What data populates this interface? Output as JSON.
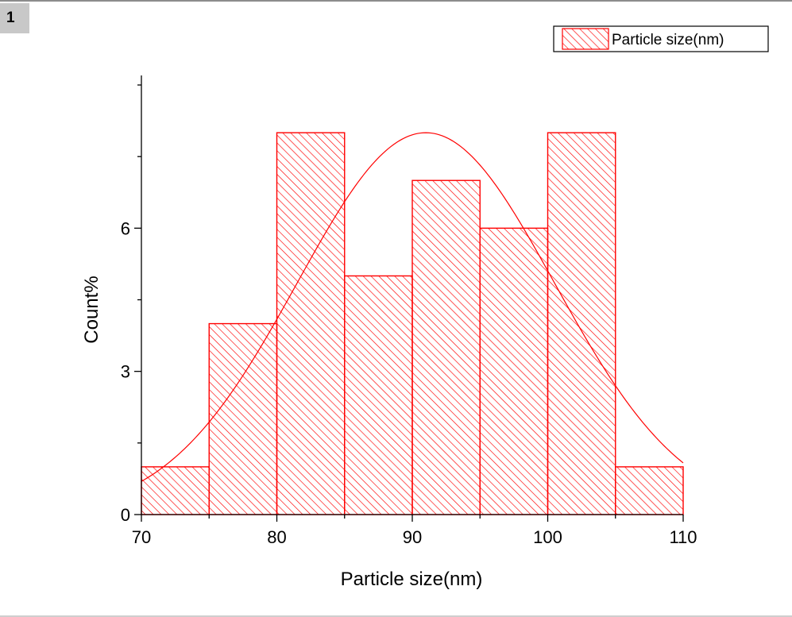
{
  "page": {
    "badge": "1"
  },
  "colors": {
    "bar_stroke": "#ff0000",
    "hatch": "#ff0000",
    "fit_line": "#ff0000",
    "axis": "#000000"
  },
  "chart_data": {
    "type": "bar",
    "bins": [
      {
        "start": 70,
        "end": 75,
        "count": 1
      },
      {
        "start": 75,
        "end": 80,
        "count": 4
      },
      {
        "start": 80,
        "end": 85,
        "count": 8
      },
      {
        "start": 85,
        "end": 90,
        "count": 5
      },
      {
        "start": 90,
        "end": 95,
        "count": 7
      },
      {
        "start": 95,
        "end": 100,
        "count": 6
      },
      {
        "start": 100,
        "end": 105,
        "count": 8
      },
      {
        "start": 105,
        "end": 110,
        "count": 1
      }
    ],
    "fit_curve": {
      "type": "normal",
      "mean": 91,
      "sd": 9.5,
      "peak": 8
    },
    "xlabel": "Particle size(nm)",
    "ylabel": "Count%",
    "xlim": [
      70,
      110
    ],
    "ylim": [
      0,
      9.2
    ],
    "xticks": [
      {
        "value": 70,
        "label": "70"
      },
      {
        "value": 80,
        "label": "80"
      },
      {
        "value": 90,
        "label": "90"
      },
      {
        "value": 100,
        "label": "100"
      },
      {
        "value": 110,
        "label": "110"
      }
    ],
    "yticks": [
      {
        "value": 0,
        "label": "0"
      },
      {
        "value": 3,
        "label": "3"
      },
      {
        "value": 6,
        "label": "6"
      }
    ],
    "legend": {
      "label": "Particle size(nm)",
      "placement": "top-right"
    },
    "grid": false
  }
}
